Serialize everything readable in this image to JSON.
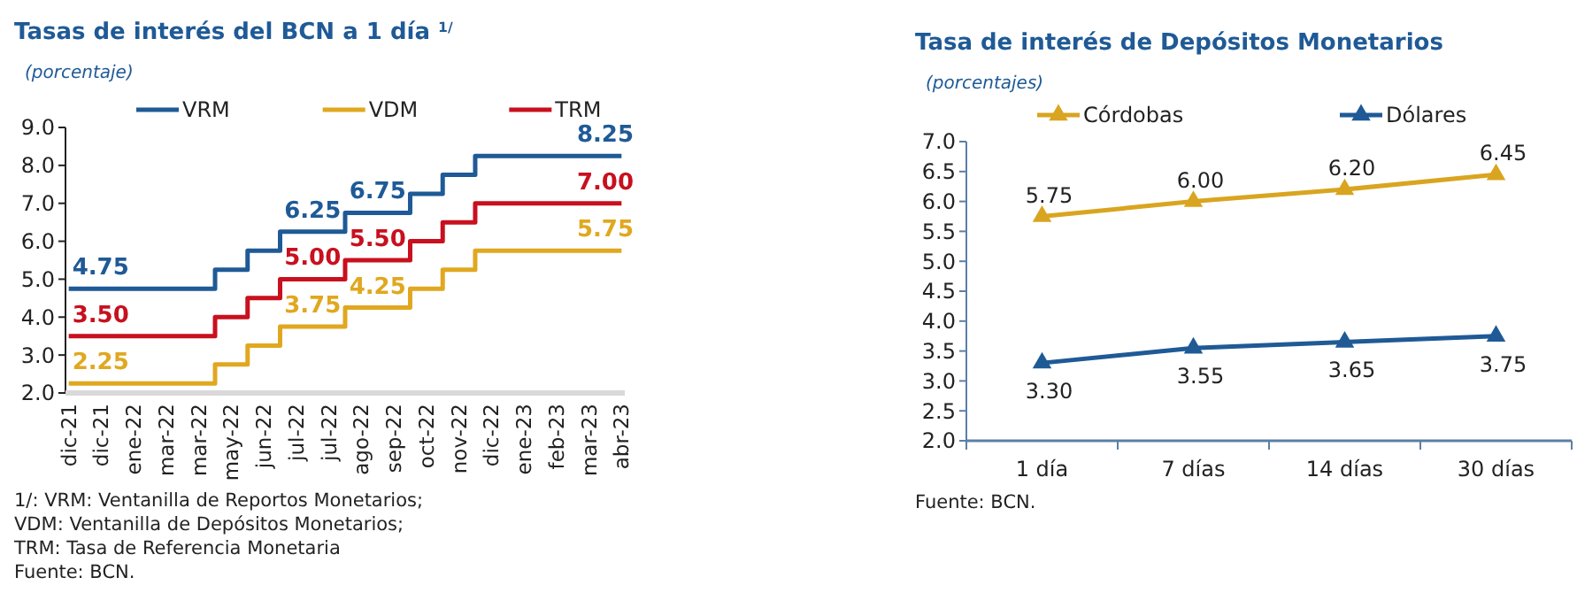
{
  "chart_data": [
    {
      "type": "step",
      "title": "Tasas de interés del BCN a 1 día $^{1/}$",
      "subtitle": "(porcentaje)",
      "categories": [
        "dic-21",
        "dic-21",
        "ene-22",
        "mar-22",
        "mar-22",
        "may-22",
        "jun-22",
        "jul-22",
        "jul-22",
        "ago-22",
        "sep-22",
        "oct-22",
        "nov-22",
        "dic-22",
        "ene-23",
        "feb-23",
        "mar-23",
        "abr-23"
      ],
      "series": [
        {
          "name": "VRM",
          "color": "#1f5a96",
          "values": [
            4.75,
            4.75,
            4.75,
            4.75,
            4.75,
            5.25,
            5.75,
            6.25,
            6.25,
            6.75,
            6.75,
            7.25,
            7.75,
            8.25,
            8.25,
            8.25,
            8.25,
            8.25
          ],
          "value_labels": [
            "4.75",
            null,
            null,
            null,
            null,
            null,
            null,
            "6.25",
            null,
            "6.75",
            null,
            null,
            null,
            null,
            null,
            null,
            "8.25",
            null
          ]
        },
        {
          "name": "VDM",
          "color": "#e0a820",
          "values": [
            2.25,
            2.25,
            2.25,
            2.25,
            2.25,
            2.75,
            3.25,
            3.75,
            3.75,
            4.25,
            4.25,
            4.75,
            5.25,
            5.75,
            5.75,
            5.75,
            5.75,
            5.75
          ],
          "value_labels": [
            "2.25",
            null,
            null,
            null,
            null,
            null,
            null,
            "3.75",
            null,
            "4.25",
            null,
            null,
            null,
            null,
            null,
            null,
            "5.75",
            null
          ]
        },
        {
          "name": "TRM",
          "color": "#c8101e",
          "values": [
            3.5,
            3.5,
            3.5,
            3.5,
            3.5,
            4.0,
            4.5,
            5.0,
            5.0,
            5.5,
            5.5,
            6.0,
            6.5,
            7.0,
            7.0,
            7.0,
            7.0,
            7.0
          ],
          "value_labels": [
            "3.50",
            null,
            null,
            null,
            null,
            null,
            null,
            "5.00",
            null,
            "5.50",
            null,
            null,
            null,
            null,
            null,
            null,
            "7.00",
            null
          ]
        }
      ],
      "ylim": [
        2,
        9
      ],
      "yticks": [
        {
          "value": 2,
          "label": "2.0"
        },
        {
          "value": 3,
          "label": "3.0"
        },
        {
          "value": 4,
          "label": "4.0"
        },
        {
          "value": 5,
          "label": "5.0"
        },
        {
          "value": 6,
          "label": "6.0"
        },
        {
          "value": 7,
          "label": "7.0"
        },
        {
          "value": 8,
          "label": "8.0"
        },
        {
          "value": 9,
          "label": "9.0"
        }
      ],
      "legend": "top",
      "grid": false,
      "marker": "none",
      "annotations": [
        "1/: VRM: Ventanilla de Reportos Monetarios;",
        "VDM: Ventanilla de Depósitos Monetarios;",
        "TRM: Tasa de Referencia Monetaria",
        "Fuente: BCN."
      ]
    },
    {
      "type": "line",
      "title": "Tasa de interés de Depósitos Monetarios",
      "subtitle": "(porcentajes)",
      "categories": [
        "1 día",
        "7 días",
        "14 días",
        "30 días"
      ],
      "series": [
        {
          "name": "Córdobas",
          "color": "#d9a520",
          "values": [
            5.75,
            6.0,
            6.2,
            6.45
          ],
          "value_labels": [
            "5.75",
            "6.00",
            "6.20",
            "6.45"
          ]
        },
        {
          "name": "Dólares",
          "color": "#1f5a96",
          "values": [
            3.3,
            3.55,
            3.65,
            3.75
          ],
          "value_labels": [
            "3.30",
            "3.55",
            "3.65",
            "3.75"
          ]
        }
      ],
      "ylim": [
        2,
        7
      ],
      "yticks": [
        {
          "value": 2,
          "label": "2.0"
        },
        {
          "value": 2.5,
          "label": "2.5"
        },
        {
          "value": 3,
          "label": "3.0"
        },
        {
          "value": 3.5,
          "label": "3.5"
        },
        {
          "value": 4,
          "label": "4.0"
        },
        {
          "value": 4.5,
          "label": "4.5"
        },
        {
          "value": 5,
          "label": "5.0"
        },
        {
          "value": 5.5,
          "label": "5.5"
        },
        {
          "value": 6,
          "label": "6.0"
        },
        {
          "value": 6.5,
          "label": "6.5"
        },
        {
          "value": 7,
          "label": "7.0"
        }
      ],
      "legend": "top",
      "grid": false,
      "marker": "triangle",
      "annotations": [
        "Fuente: BCN."
      ]
    }
  ]
}
